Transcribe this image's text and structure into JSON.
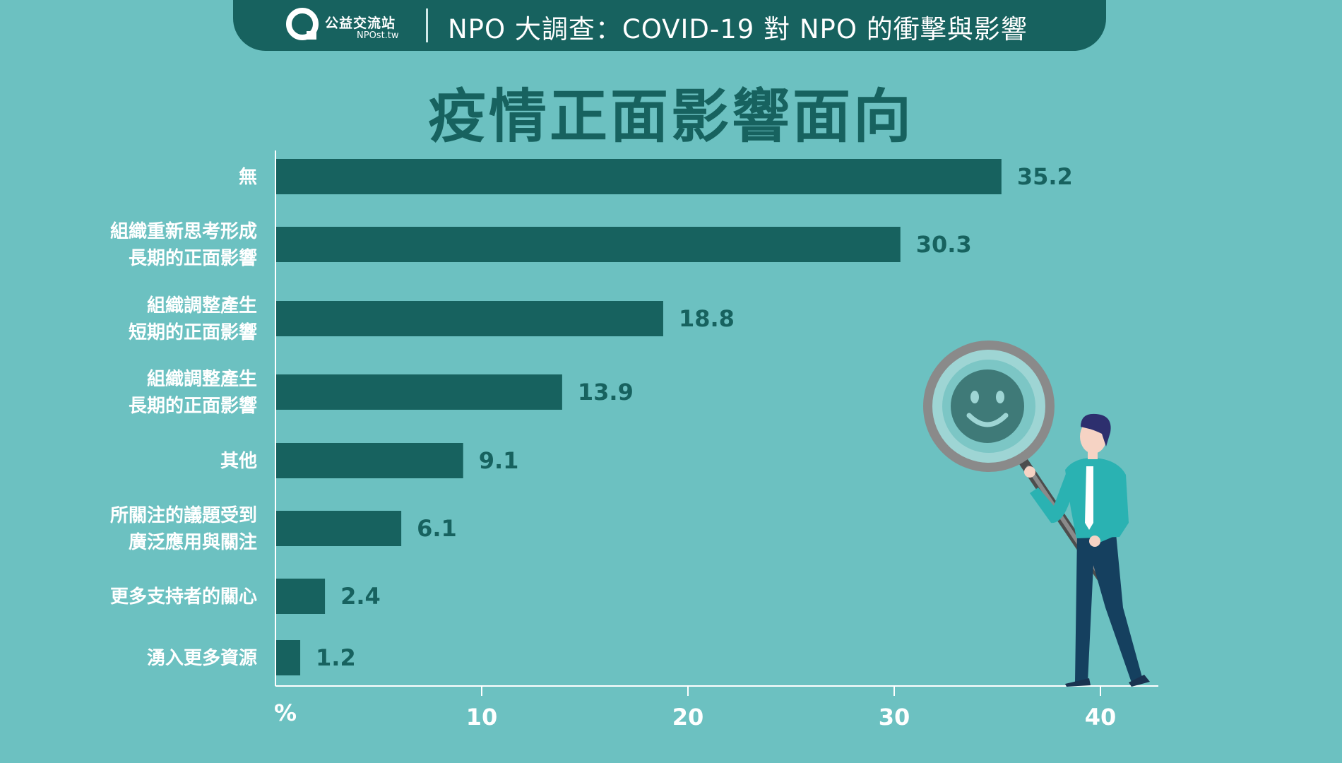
{
  "header": {
    "logo_name": "公益交流站",
    "logo_sub": "NPOst.tw",
    "title": "NPO 大調查：COVID-19 對 NPO 的衝擊與影響"
  },
  "colors": {
    "background": "#6cc1c1",
    "bar": "#17625f",
    "header": "#17625f",
    "label": "#ffffff"
  },
  "chart_data": {
    "type": "bar",
    "orientation": "horizontal",
    "title": "疫情正面影響面向",
    "xlabel": "%",
    "ylabel": "",
    "xlim": [
      0,
      43
    ],
    "xticks": [
      10,
      20,
      30,
      40
    ],
    "grid": false,
    "categories": [
      [
        "無"
      ],
      [
        "組織重新思考形成",
        "長期的正面影響"
      ],
      [
        "組織調整產生",
        "短期的正面影響"
      ],
      [
        "組織調整產生",
        "長期的正面影響"
      ],
      [
        "其他"
      ],
      [
        "所關注的議題受到",
        "廣泛應用與關注"
      ],
      [
        "更多支持者的關心"
      ],
      [
        "湧入更多資源"
      ]
    ],
    "values": [
      35.2,
      30.3,
      18.8,
      13.9,
      9.1,
      6.1,
      2.4,
      1.2
    ],
    "display_values": [
      "35.2",
      "30.3",
      "18.8",
      "13.9",
      "9.1",
      "6.1",
      "2.4",
      "1.2"
    ],
    "tick_labels": [
      "10",
      "20",
      "30",
      "40"
    ]
  },
  "illustration": {
    "subject": "man-with-magnifying-glass",
    "icon": "smiley-face-icon"
  }
}
